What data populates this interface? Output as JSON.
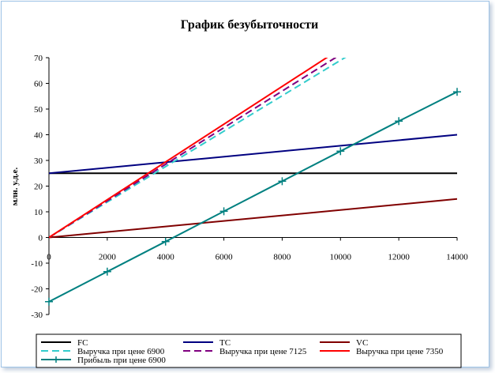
{
  "chart_data": {
    "type": "line",
    "title": "График безубыточности",
    "xlabel": "",
    "ylabel": "млн. у.д.е.",
    "xlim": [
      0,
      14000
    ],
    "ylim": [
      -30,
      70
    ],
    "xticks": [
      0,
      2000,
      4000,
      6000,
      8000,
      10000,
      12000,
      14000
    ],
    "yticks": [
      -30,
      -20,
      -10,
      0,
      10,
      20,
      30,
      40,
      50,
      60,
      70
    ],
    "grid": false,
    "legend_position": "bottom",
    "series": [
      {
        "name": "FC",
        "color": "#000000",
        "dash": "",
        "marker": "none",
        "points": [
          [
            0,
            25
          ],
          [
            14000,
            25
          ]
        ]
      },
      {
        "name": "TC",
        "color": "#000080",
        "dash": "",
        "marker": "none",
        "points": [
          [
            0,
            25
          ],
          [
            14000,
            40
          ]
        ]
      },
      {
        "name": "VC",
        "color": "#800000",
        "dash": "",
        "marker": "none",
        "points": [
          [
            0,
            0
          ],
          [
            14000,
            15
          ]
        ]
      },
      {
        "name": "Выручка при цене 6900",
        "color": "#33cccc",
        "dash": "9,5",
        "marker": "none",
        "points": [
          [
            0,
            0
          ],
          [
            10380,
            71.6
          ]
        ]
      },
      {
        "name": "Выручка при цене 7125",
        "color": "#800080",
        "dash": "9,5",
        "marker": "none",
        "points": [
          [
            0,
            0
          ],
          [
            10050,
            71.6
          ]
        ]
      },
      {
        "name": "Выручка при цене 7350",
        "color": "#ff0000",
        "dash": "",
        "marker": "none",
        "points": [
          [
            0,
            0
          ],
          [
            9740,
            71.6
          ]
        ]
      },
      {
        "name": "Прибыль при цене 6900",
        "color": "#008080",
        "dash": "",
        "marker": "plus",
        "points": [
          [
            0,
            -25
          ],
          [
            2000,
            -13.3
          ],
          [
            4000,
            -1.6
          ],
          [
            6000,
            10.2
          ],
          [
            8000,
            21.9
          ],
          [
            10000,
            33.6
          ],
          [
            12000,
            45.3
          ],
          [
            14000,
            56.7
          ]
        ]
      }
    ]
  }
}
